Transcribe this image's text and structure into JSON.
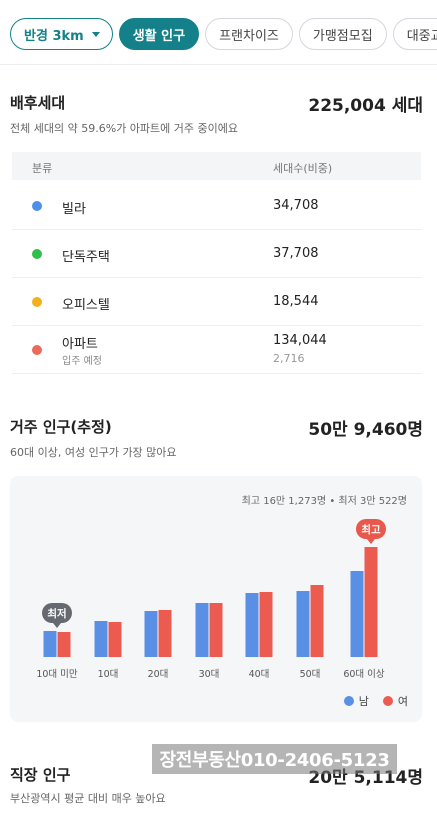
{
  "filters": [
    {
      "label": "반경 3km",
      "kind": "radius"
    },
    {
      "label": "생활 인구",
      "kind": "active"
    },
    {
      "label": "프랜차이즈",
      "kind": "normal"
    },
    {
      "label": "가맹점모집",
      "kind": "normal"
    },
    {
      "label": "대중교통",
      "kind": "normal"
    }
  ],
  "households": {
    "title": "배후세대",
    "total": "225,004 세대",
    "subtitle": "전체 세대의 약 59.6%가 아파트에 거주 중이에요",
    "table_headers": [
      "분류",
      "세대수(비중)"
    ],
    "rows": [
      {
        "name": "빌라",
        "count": "34,708",
        "color": "#4f8fea",
        "note": "",
        "subcount": ""
      },
      {
        "name": "단독주택",
        "count": "37,708",
        "color": "#2fbf4a",
        "note": "",
        "subcount": ""
      },
      {
        "name": "오피스텔",
        "count": "18,544",
        "color": "#f2b01e",
        "note": "",
        "subcount": ""
      },
      {
        "name": "아파트",
        "count": "134,044",
        "color": "#ea6a5b",
        "note": "입주 예정",
        "subcount": "2,716"
      }
    ]
  },
  "residents": {
    "title": "거주 인구(추정)",
    "total": "50만 9,460명",
    "subtitle": "60대 이상, 여성 인구가 가장 많아요",
    "minmax": "최고 16만 1,273명 • 최저 3만 522명",
    "min_badge": "최저",
    "max_badge": "최고",
    "legend_male": "남",
    "legend_female": "여"
  },
  "workers": {
    "title": "직장 인구",
    "total": "20만 5,114명",
    "subtitle": "부산광역시 평균 대비 매우 높아요"
  },
  "watermark": "장전부동산010-2406-5123",
  "chart_data": {
    "type": "bar",
    "categories": [
      "10대 미만",
      "10대",
      "20대",
      "30대",
      "40대",
      "50대",
      "60대 이상"
    ],
    "series": [
      {
        "name": "남",
        "color": "#5a8fe6",
        "values": [
          13,
          18,
          23,
          27,
          32,
          33,
          43
        ]
      },
      {
        "name": "여",
        "color": "#ec5b50",
        "values": [
          12.5,
          17.5,
          23.5,
          27,
          32.5,
          36,
          55
        ]
      }
    ],
    "ylim": [
      0,
      60
    ],
    "grid": false,
    "legend": "bottom-right"
  }
}
